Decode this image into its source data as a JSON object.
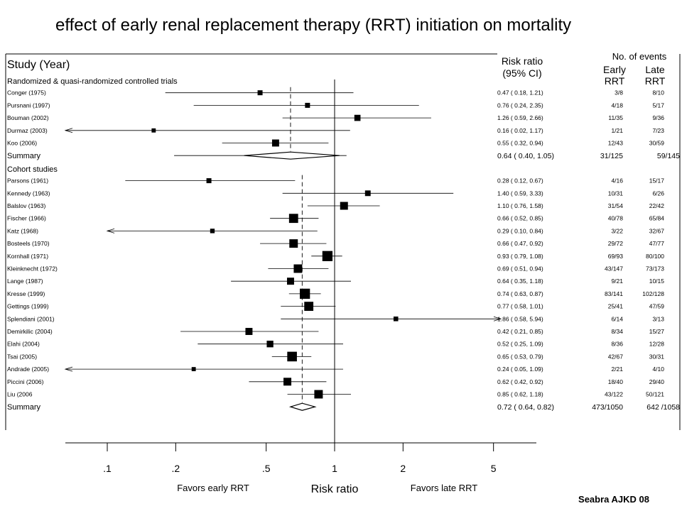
{
  "slide_title": "effect of early renal replacement therapy (RRT) initiation on mortality",
  "credit": "Seabra AJKD 08",
  "headers": {
    "study": "Study (Year)",
    "rr_line1": "Risk ratio",
    "rr_line2": "(95% CI)",
    "events_top": "No. of events",
    "early1": "Early",
    "early2": "RRT",
    "late1": "Late",
    "late2": "RRT"
  },
  "chart_data": {
    "type": "forest",
    "title": "",
    "xlabel": "Risk ratio",
    "x_scale": "log",
    "x_ticks": [
      ".1",
      ".2",
      ".5",
      "1",
      "2",
      "5"
    ],
    "x_tick_values": [
      0.1,
      0.2,
      0.5,
      1,
      2,
      5
    ],
    "left_direction_label": "Favors early RRT",
    "right_direction_label": "Favors late RRT",
    "groups": [
      {
        "name": "Randomized & quasi-randomized controlled trials",
        "summary_rr": 0.64,
        "studies": [
          {
            "label": "Conger (1975)",
            "rr": 0.47,
            "lo": 0.18,
            "hi": 1.21,
            "ci_text": "0.47 ( 0.18, 1.21)",
            "early": "3/8",
            "late": "8/10",
            "weight": 1
          },
          {
            "label": "Pursnani (1997)",
            "rr": 0.76,
            "lo": 0.24,
            "hi": 2.35,
            "ci_text": "0.76 ( 0.24, 2.35)",
            "early": "4/18",
            "late": "5/17",
            "weight": 1
          },
          {
            "label": "Bouman (2002)",
            "rr": 1.26,
            "lo": 0.59,
            "hi": 2.66,
            "ci_text": "1.26 ( 0.59, 2.66)",
            "early": "11/35",
            "late": "9/36",
            "weight": 2
          },
          {
            "label": "Durmaz (2003)",
            "rr": 0.16,
            "lo": 0.02,
            "hi": 1.17,
            "ci_text": "0.16 ( 0.02, 1.17)",
            "early": "1/21",
            "late": "7/23",
            "weight": 0.5,
            "lo_arrow": true
          },
          {
            "label": "Koo (2006)",
            "rr": 0.55,
            "lo": 0.32,
            "hi": 0.94,
            "ci_text": "0.55 ( 0.32, 0.94)",
            "early": "12/43",
            "late": "30/59",
            "weight": 3
          }
        ],
        "summary": {
          "label": "Summary",
          "rr": 0.64,
          "lo": 0.4,
          "hi": 1.05,
          "ci_text": "0.64 ( 0.40, 1.05)",
          "early": "31/125",
          "late": "59/145"
        }
      },
      {
        "name": "Cohort studies",
        "summary_rr": 0.72,
        "studies": [
          {
            "label": "Parsons (1961)",
            "rr": 0.28,
            "lo": 0.12,
            "hi": 0.67,
            "ci_text": "0.28 ( 0.12, 0.67)",
            "early": "4/16",
            "late": "15/17",
            "weight": 1
          },
          {
            "label": "Kennedy (1963)",
            "rr": 1.4,
            "lo": 0.59,
            "hi": 3.33,
            "ci_text": "1.40 ( 0.59, 3.33)",
            "early": "10/31",
            "late": "6/26",
            "weight": 1.5
          },
          {
            "label": "Balslov (1963)",
            "rr": 1.1,
            "lo": 0.76,
            "hi": 1.58,
            "ci_text": "1.10 ( 0.76, 1.58)",
            "early": "31/54",
            "late": "22/42",
            "weight": 4
          },
          {
            "label": "Fischer (1966)",
            "rr": 0.66,
            "lo": 0.52,
            "hi": 0.85,
            "ci_text": "0.66 ( 0.52, 0.85)",
            "early": "40/78",
            "late": "65/84",
            "weight": 6
          },
          {
            "label": "Katz (1968)",
            "rr": 0.29,
            "lo": 0.1,
            "hi": 0.84,
            "ci_text": "0.29 ( 0.10, 0.84)",
            "early": "3/22",
            "late": "32/67",
            "weight": 0.7,
            "lo_arrow": true
          },
          {
            "label": "Bosteels (1970)",
            "rr": 0.66,
            "lo": 0.47,
            "hi": 0.92,
            "ci_text": "0.66 ( 0.47, 0.92)",
            "early": "29/72",
            "late": "47/77",
            "weight": 5
          },
          {
            "label": "Kornhall (1971)",
            "rr": 0.93,
            "lo": 0.79,
            "hi": 1.08,
            "ci_text": "0.93 ( 0.79, 1.08)",
            "early": "69/93",
            "late": "80/100",
            "weight": 8
          },
          {
            "label": "Kleinknecht (1972)",
            "rr": 0.69,
            "lo": 0.51,
            "hi": 0.94,
            "ci_text": "0.69 ( 0.51, 0.94)",
            "early": "43/147",
            "late": "73/173",
            "weight": 5
          },
          {
            "label": "Lange (1987)",
            "rr": 0.64,
            "lo": 0.35,
            "hi": 1.18,
            "ci_text": "0.64 ( 0.35, 1.18)",
            "early": "9/21",
            "late": "10/15",
            "weight": 3
          },
          {
            "label": "Kresse (1999)",
            "rr": 0.74,
            "lo": 0.63,
            "hi": 0.87,
            "ci_text": "0.74 ( 0.63, 0.87)",
            "early": "83/141",
            "late": "102/128",
            "weight": 8
          },
          {
            "label": "Gettings (1999)",
            "rr": 0.77,
            "lo": 0.58,
            "hi": 1.01,
            "ci_text": "0.77 ( 0.58, 1.01)",
            "early": "25/41",
            "late": "47/59",
            "weight": 6
          },
          {
            "label": "Splendiani (2001)",
            "rr": 1.86,
            "lo": 0.58,
            "hi": 5.94,
            "ci_text": "1.86 ( 0.58, 5.94)",
            "early": "6/14",
            "late": "3/13",
            "weight": 0.8,
            "hi_arrow": true
          },
          {
            "label": "Demirkilic (2004)",
            "rr": 0.42,
            "lo": 0.21,
            "hi": 0.85,
            "ci_text": "0.42 ( 0.21, 0.85)",
            "early": "8/34",
            "late": "15/27",
            "weight": 3
          },
          {
            "label": "Elahi (2004)",
            "rr": 0.52,
            "lo": 0.25,
            "hi": 1.09,
            "ci_text": "0.52 ( 0.25, 1.09)",
            "early": "8/36",
            "late": "12/28",
            "weight": 2.5
          },
          {
            "label": "Tsai (2005)",
            "rr": 0.65,
            "lo": 0.53,
            "hi": 0.79,
            "ci_text": "0.65 ( 0.53, 0.79)",
            "early": "42/67",
            "late": "30/31",
            "weight": 7
          },
          {
            "label": "Andrade (2005)",
            "rr": 0.24,
            "lo": 0.05,
            "hi": 1.09,
            "ci_text": "0.24 ( 0.05, 1.09)",
            "early": "2/21",
            "late": "4/10",
            "weight": 0.5,
            "lo_arrow": true
          },
          {
            "label": "Piccini (2006)",
            "rr": 0.62,
            "lo": 0.42,
            "hi": 0.92,
            "ci_text": "0.62 ( 0.42, 0.92)",
            "early": "18/40",
            "late": "29/40",
            "weight": 4
          },
          {
            "label": "Liu (2006",
            "rr": 0.85,
            "lo": 0.62,
            "hi": 1.18,
            "ci_text": "0.85 ( 0.62, 1.18)",
            "early": "43/122",
            "late": "50/121",
            "weight": 5
          }
        ],
        "summary": {
          "label": "Summary",
          "rr": 0.72,
          "lo": 0.64,
          "hi": 0.82,
          "ci_text": "0.72 ( 0.64, 0.82)",
          "early": "473/1050",
          "late": "642 /1058"
        }
      }
    ]
  }
}
